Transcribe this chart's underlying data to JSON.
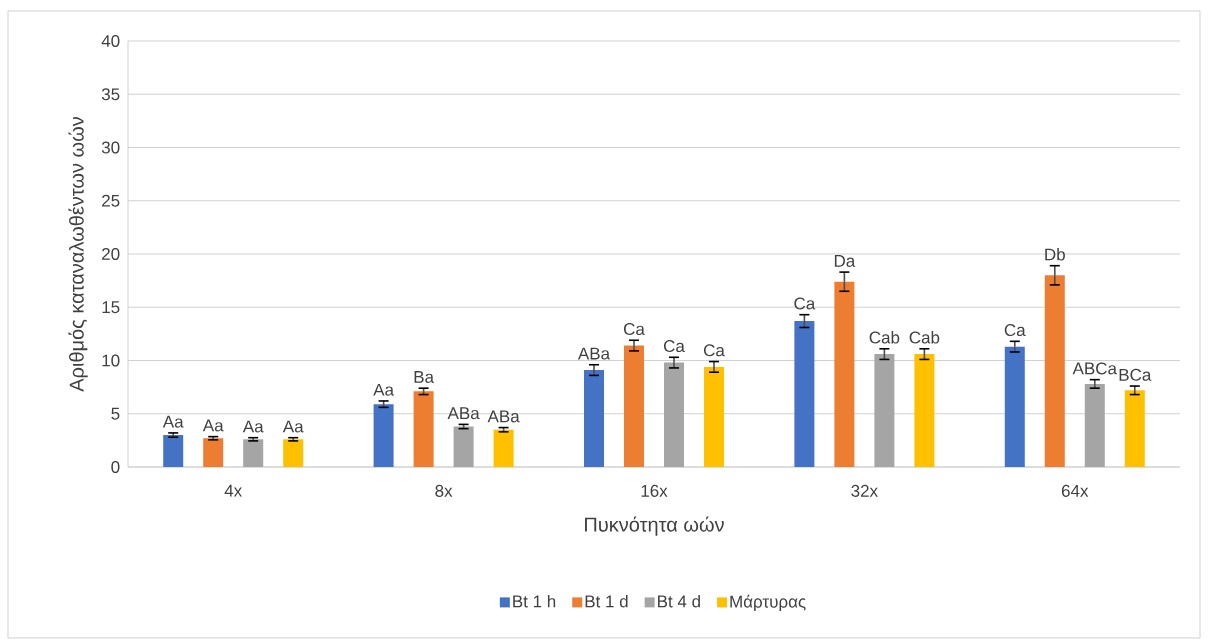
{
  "chart_data": {
    "type": "bar",
    "xlabel": "Πυκνότητα ωών",
    "ylabel": "Αριθμός καταναλωθέντων ωών",
    "categories": [
      "4x",
      "8x",
      "16x",
      "32x",
      "64x"
    ],
    "series": [
      {
        "name": "Bt 1 h",
        "color": "#4472c4",
        "values": [
          3.0,
          5.9,
          9.1,
          13.7,
          11.3
        ],
        "errors": [
          0.2,
          0.3,
          0.5,
          0.6,
          0.5
        ],
        "value_labels": [
          "Aa",
          "Aa",
          "ABa",
          "Ca",
          "Ca"
        ]
      },
      {
        "name": "Bt 1 d",
        "color": "#ed7d31",
        "values": [
          2.7,
          7.1,
          11.4,
          17.4,
          18.0
        ],
        "errors": [
          0.15,
          0.3,
          0.5,
          0.9,
          0.9
        ],
        "value_labels": [
          "Aa",
          "Ba",
          "Ca",
          "Da",
          "Db"
        ]
      },
      {
        "name": "Bt 4 d",
        "color": "#a5a5a5",
        "values": [
          2.6,
          3.8,
          9.8,
          10.6,
          7.8
        ],
        "errors": [
          0.15,
          0.2,
          0.5,
          0.5,
          0.4
        ],
        "value_labels": [
          "Aa",
          "ABa",
          "Ca",
          "Cab",
          "ABCa"
        ]
      },
      {
        "name": "Μάρτυρας",
        "color": "#ffc000",
        "values": [
          2.6,
          3.5,
          9.4,
          10.6,
          7.2
        ],
        "errors": [
          0.15,
          0.2,
          0.5,
          0.5,
          0.4
        ],
        "value_labels": [
          "Aa",
          "ABa",
          "Ca",
          "Cab",
          "BCa"
        ]
      }
    ],
    "ylim": [
      0,
      40
    ],
    "yticks": [
      0,
      5,
      10,
      15,
      20,
      25,
      30,
      35,
      40
    ],
    "grid": "y",
    "legend": "bottom"
  }
}
